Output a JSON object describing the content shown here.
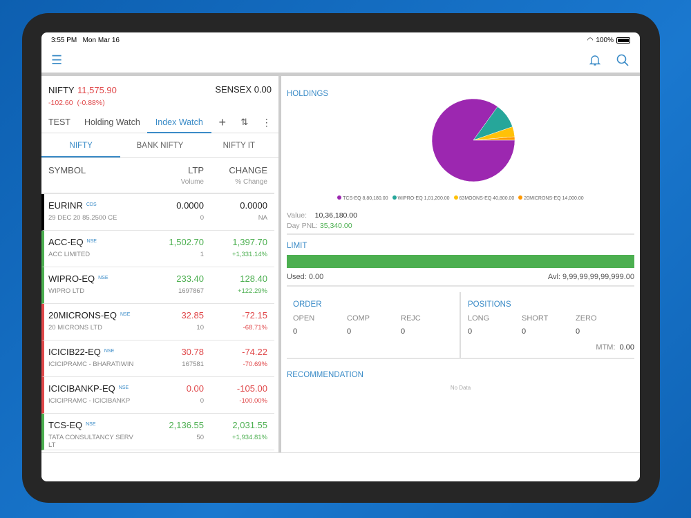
{
  "status": {
    "time": "3:55 PM",
    "date": "Mon Mar 16",
    "battery": "100%"
  },
  "indices": {
    "nifty": {
      "label": "NIFTY",
      "value": "11,575.90",
      "change": "-102.60",
      "pct": "(-0.88%)"
    },
    "sensex": {
      "label": "SENSEX",
      "value": "0.00"
    }
  },
  "tabs": [
    "TEST",
    "Holding Watch",
    "Index Watch"
  ],
  "subtabs": [
    "NIFTY",
    "BANK NIFTY",
    "NIFTY IT"
  ],
  "columns": {
    "symbol": "SYMBOL",
    "ltp": "LTP",
    "volume": "Volume",
    "change": "CHANGE",
    "pct": "% Change"
  },
  "rows": [
    {
      "symbol": "EURINR",
      "exch": "CDS",
      "desc": "29 DEC 20 85.2500 CE",
      "ltp": "0.0000",
      "vol": "0",
      "chg": "0.0000",
      "pct": "NA",
      "dir": "flat"
    },
    {
      "symbol": "ACC-EQ",
      "exch": "NSE",
      "desc": "ACC LIMITED",
      "ltp": "1,502.70",
      "vol": "1",
      "chg": "1,397.70",
      "pct": "+1,331.14%",
      "dir": "up"
    },
    {
      "symbol": "WIPRO-EQ",
      "exch": "NSE",
      "desc": "WIPRO LTD",
      "ltp": "233.40",
      "vol": "1697867",
      "chg": "128.40",
      "pct": "+122.29%",
      "dir": "up"
    },
    {
      "symbol": "20MICRONS-EQ",
      "exch": "NSE",
      "desc": "20 MICRONS LTD",
      "ltp": "32.85",
      "vol": "10",
      "chg": "-72.15",
      "pct": "-68.71%",
      "dir": "down"
    },
    {
      "symbol": "ICICIB22-EQ",
      "exch": "NSE",
      "desc": "ICICIPRAMC - BHARATIWIN",
      "ltp": "30.78",
      "vol": "167581",
      "chg": "-74.22",
      "pct": "-70.69%",
      "dir": "down"
    },
    {
      "symbol": "ICICIBANKP-EQ",
      "exch": "NSE",
      "desc": "ICICIPRAMC - ICICIBANKP",
      "ltp": "0.00",
      "vol": "0",
      "chg": "-105.00",
      "pct": "-100.00%",
      "dir": "down"
    },
    {
      "symbol": "TCS-EQ",
      "exch": "NSE",
      "desc": "TATA CONSULTANCY SERV LT",
      "ltp": "2,136.55",
      "vol": "50",
      "chg": "2,031.55",
      "pct": "+1,934.81%",
      "dir": "up"
    }
  ],
  "holdings": {
    "title": "HOLDINGS",
    "value_label": "Value:",
    "value": "10,36,180.00",
    "pnl_label": "Day PNL:",
    "pnl": "35,340.00"
  },
  "chart_data": {
    "type": "pie",
    "title": "HOLDINGS",
    "slices": [
      {
        "label": "TCS-EQ",
        "display": "8,80,180.00",
        "value": 880180,
        "color": "#9c27b0"
      },
      {
        "label": "WIPRO-EQ",
        "display": "1,01,200.00",
        "value": 101200,
        "color": "#26a69a"
      },
      {
        "label": "63MOONS-EQ",
        "display": "40,800.00",
        "value": 40800,
        "color": "#ffc107"
      },
      {
        "label": "20MICRONS-EQ",
        "display": "14,000.00",
        "value": 14000,
        "color": "#ff9800"
      }
    ]
  },
  "limit": {
    "title": "LIMIT",
    "used_label": "Used:",
    "used": "0.00",
    "avl_label": "Avl:",
    "avl": "9,99,99,99,99,999.00",
    "fill": 1.0,
    "color": "#4caf50"
  },
  "order": {
    "title": "ORDER",
    "labels": [
      "OPEN",
      "COMP",
      "REJC"
    ],
    "values": [
      "0",
      "0",
      "0"
    ]
  },
  "positions": {
    "title": "POSITIONS",
    "labels": [
      "LONG",
      "SHORT",
      "ZERO"
    ],
    "values": [
      "0",
      "0",
      "0"
    ],
    "mtm_label": "MTM:",
    "mtm": "0.00"
  },
  "recommendation": {
    "title": "RECOMMENDATION",
    "empty": "No Data"
  }
}
